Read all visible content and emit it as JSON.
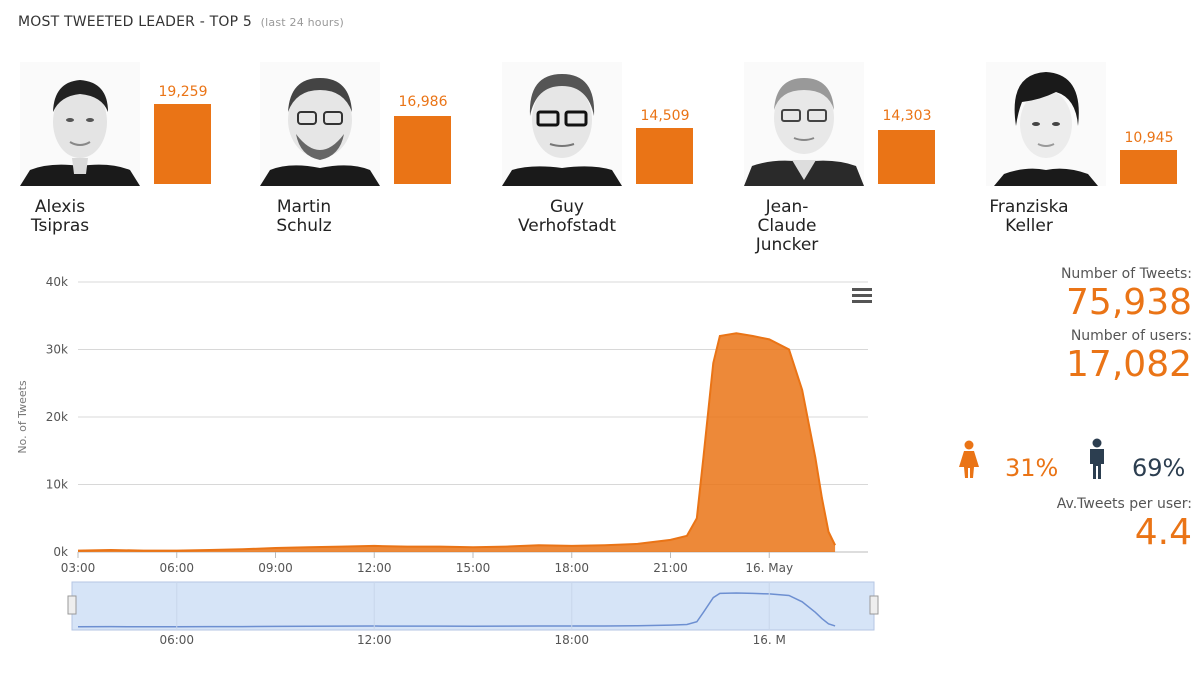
{
  "header": {
    "title": "MOST TWEETED LEADER - TOP 5",
    "subtitle": "(last 24 hours)"
  },
  "leaders": [
    {
      "first": "Alexis",
      "last": "Tsipras",
      "count_label": "19,259",
      "count": 19259
    },
    {
      "first": "Martin",
      "last": "Schulz",
      "count_label": "16,986",
      "count": 16986
    },
    {
      "first": "Guy",
      "last": "Verhofstadt",
      "count_label": "14,509",
      "count": 14509
    },
    {
      "first": "Jean-",
      "last": "Claude",
      "extra": "Juncker",
      "count_label": "14,303",
      "count": 14303
    },
    {
      "first": "Franziska",
      "last": "Keller",
      "count_label": "10,945",
      "count": 10945
    }
  ],
  "stats": {
    "tweets_label": "Number of Tweets:",
    "tweets_value": "75,938",
    "users_label": "Number of users:",
    "users_value": "17,082",
    "female_pct": "31%",
    "male_pct": "69%",
    "avg_label": "Av.Tweets per user:",
    "avg_value": "4.4"
  },
  "colors": {
    "accent": "#ea7416",
    "navigator_fill": "#d6e4f7",
    "navigator_line": "#6d8fd1",
    "male": "#2c3e50"
  },
  "chart_data": {
    "type": "area",
    "ylabel": "No. of Tweets",
    "yticks": [
      "0k",
      "10k",
      "20k",
      "30k",
      "40k"
    ],
    "ylim": [
      0,
      40000
    ],
    "xlim": [
      3,
      27
    ],
    "xticks": [
      {
        "x": 3,
        "label": "03:00"
      },
      {
        "x": 6,
        "label": "06:00"
      },
      {
        "x": 9,
        "label": "09:00"
      },
      {
        "x": 12,
        "label": "12:00"
      },
      {
        "x": 15,
        "label": "15:00"
      },
      {
        "x": 18,
        "label": "18:00"
      },
      {
        "x": 21,
        "label": "21:00"
      },
      {
        "x": 24,
        "label": "16. May"
      }
    ],
    "navigator_ticks": [
      {
        "x": 6,
        "label": "06:00"
      },
      {
        "x": 12,
        "label": "12:00"
      },
      {
        "x": 18,
        "label": "18:00"
      },
      {
        "x": 24,
        "label": "16. M"
      }
    ],
    "x": [
      3,
      4,
      5,
      6,
      7,
      8,
      9,
      10,
      11,
      12,
      13,
      14,
      15,
      16,
      17,
      18,
      19,
      20,
      21,
      21.5,
      21.8,
      22,
      22.3,
      22.5,
      23,
      23.5,
      24,
      24.6,
      25,
      25.4,
      25.6,
      25.8,
      26
    ],
    "values": [
      200,
      300,
      200,
      200,
      300,
      400,
      600,
      700,
      800,
      900,
      800,
      800,
      700,
      800,
      1000,
      900,
      1000,
      1200,
      1800,
      2400,
      5000,
      14000,
      28000,
      32000,
      32400,
      32000,
      31500,
      30000,
      24000,
      14000,
      8000,
      3000,
      1000
    ],
    "grid": true,
    "legend": "none"
  }
}
